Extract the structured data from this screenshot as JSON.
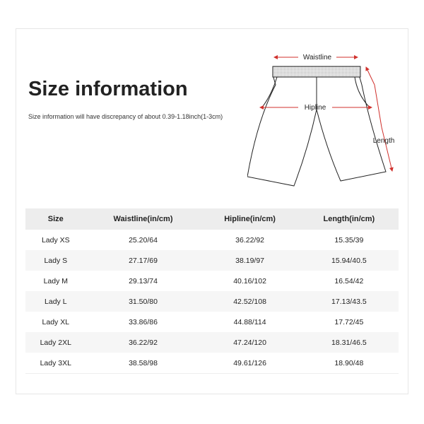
{
  "title": "Size information",
  "subtitle": "Size information will have discrepancy of about 0.39-1.18inch(1-3cm)",
  "diagram": {
    "labels": {
      "waistline": "Waistline",
      "hipline": "Hipline",
      "length": "Length"
    },
    "arrow_color": "#d0312d"
  },
  "table": {
    "headers": [
      "Size",
      "Waistline(in/cm)",
      "Hipline(in/cm)",
      "Length(in/cm)"
    ],
    "rows": [
      [
        "Lady XS",
        "25.20/64",
        "36.22/92",
        "15.35/39"
      ],
      [
        "Lady S",
        "27.17/69",
        "38.19/97",
        "15.94/40.5"
      ],
      [
        "Lady M",
        "29.13/74",
        "40.16/102",
        "16.54/42"
      ],
      [
        "Lady L",
        "31.50/80",
        "42.52/108",
        "17.13/43.5"
      ],
      [
        "Lady XL",
        "33.86/86",
        "44.88/114",
        "17.72/45"
      ],
      [
        "Lady 2XL",
        "36.22/92",
        "47.24/120",
        "18.31/46.5"
      ],
      [
        "Lady 3XL",
        "38.58/98",
        "49.61/126",
        "18.90/48"
      ]
    ]
  }
}
